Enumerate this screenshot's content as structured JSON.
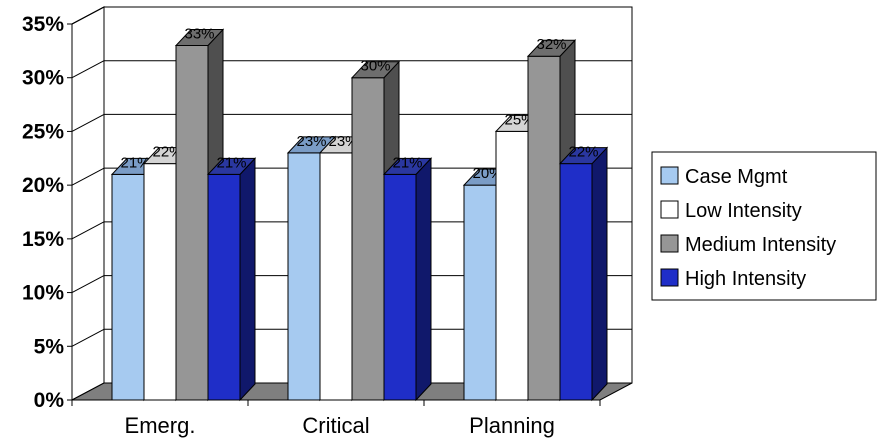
{
  "chart_data": {
    "type": "bar",
    "title": "",
    "xlabel": "",
    "ylabel": "",
    "categories": [
      "Emerg.",
      "Critical",
      "Planning"
    ],
    "ylim": [
      0,
      35
    ],
    "y_ticks": [
      "0%",
      "5%",
      "10%",
      "15%",
      "20%",
      "25%",
      "30%",
      "35%"
    ],
    "series": [
      {
        "name": "Case Mgmt",
        "values": [
          21,
          23,
          20
        ],
        "labels": [
          "21%",
          "23%",
          "20%"
        ],
        "color": "#a6caf0",
        "side_color": "#6f8db5",
        "top_color": "#7a9cc6"
      },
      {
        "name": "Low Intensity",
        "values": [
          22,
          23,
          25
        ],
        "labels": [
          "22%",
          "23%",
          "25%"
        ],
        "color": "#ffffff",
        "side_color": "#bdbdbd",
        "top_color": "#d4d4d4"
      },
      {
        "name": "Medium Intensity",
        "values": [
          33,
          30,
          32
        ],
        "labels": [
          "33%",
          "30%",
          "32%"
        ],
        "color": "#969696",
        "side_color": "#4f4f4f",
        "top_color": "#6e6e6e"
      },
      {
        "name": "High Intensity",
        "values": [
          21,
          21,
          22
        ],
        "labels": [
          "21%",
          "21%",
          "22%"
        ],
        "color": "#1f2ec8",
        "side_color": "#10186b",
        "top_color": "#2a37a0"
      }
    ],
    "legend_position": "right",
    "grid": true,
    "style": "3d-clustered-column",
    "floor_color": "#7f7f7f"
  }
}
